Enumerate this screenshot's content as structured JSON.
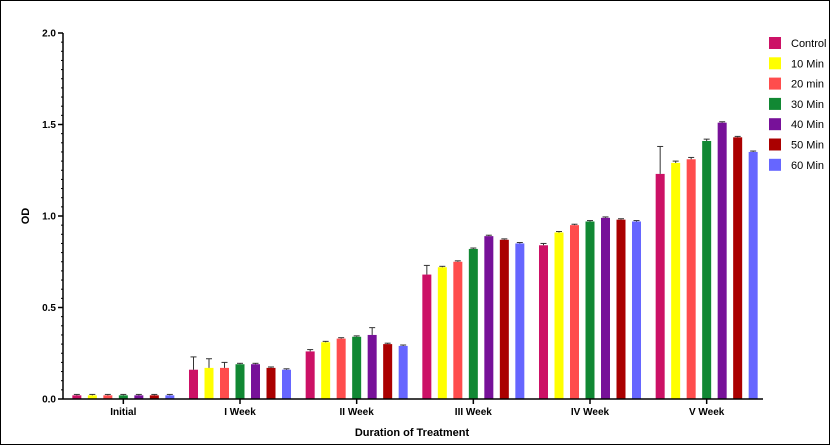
{
  "chart_data": {
    "type": "bar",
    "title": "",
    "xlabel": "Duration of Treatment",
    "ylabel": "OD",
    "ylim": [
      0,
      2.0
    ],
    "yticks": [
      "0.0",
      "0.5",
      "1.0",
      "1.5",
      "2.0"
    ],
    "legend_position": "top-right",
    "categories": [
      "Initial",
      "I Week",
      "II Week",
      "III Week",
      "IV Week",
      "V Week"
    ],
    "series": [
      {
        "name": "Control",
        "color": "#CC1166",
        "values": [
          0.02,
          0.16,
          0.26,
          0.68,
          0.84,
          1.23
        ],
        "errors": [
          0.005,
          0.07,
          0.01,
          0.05,
          0.01,
          0.15
        ]
      },
      {
        "name": "10 Min",
        "color": "#FFFF00",
        "values": [
          0.02,
          0.17,
          0.31,
          0.72,
          0.91,
          1.29
        ],
        "errors": [
          0.005,
          0.05,
          0.005,
          0.005,
          0.005,
          0.01
        ]
      },
      {
        "name": "20 min",
        "color": "#FF4D4D",
        "values": [
          0.02,
          0.17,
          0.33,
          0.75,
          0.95,
          1.31
        ],
        "errors": [
          0.005,
          0.03,
          0.005,
          0.005,
          0.005,
          0.01
        ]
      },
      {
        "name": "30 Min",
        "color": "#118833",
        "values": [
          0.02,
          0.19,
          0.34,
          0.82,
          0.97,
          1.41
        ],
        "errors": [
          0.005,
          0.005,
          0.005,
          0.005,
          0.005,
          0.01
        ]
      },
      {
        "name": "40 Min",
        "color": "#771199",
        "values": [
          0.02,
          0.19,
          0.35,
          0.89,
          0.99,
          1.51
        ],
        "errors": [
          0.005,
          0.005,
          0.04,
          0.005,
          0.005,
          0.005
        ]
      },
      {
        "name": "50 Min",
        "color": "#AA0000",
        "values": [
          0.02,
          0.17,
          0.3,
          0.87,
          0.98,
          1.43
        ],
        "errors": [
          0.005,
          0.005,
          0.005,
          0.005,
          0.005,
          0.005
        ]
      },
      {
        "name": "60 Min",
        "color": "#6666FF",
        "values": [
          0.02,
          0.16,
          0.29,
          0.85,
          0.97,
          1.35
        ],
        "errors": [
          0.005,
          0.005,
          0.005,
          0.005,
          0.005,
          0.005
        ]
      }
    ]
  }
}
